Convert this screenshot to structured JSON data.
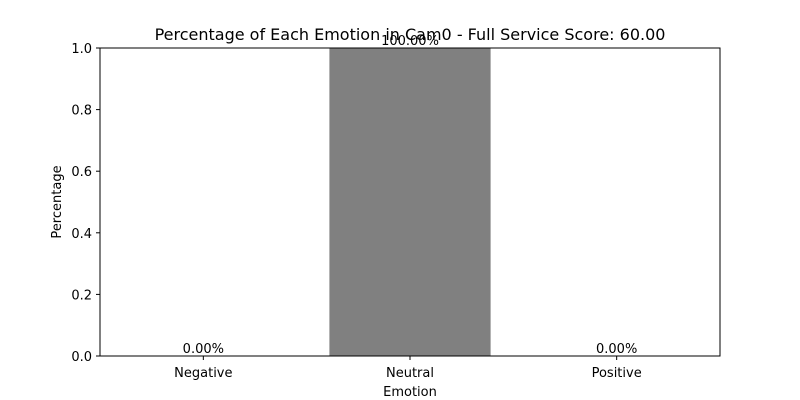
{
  "chart_data": {
    "type": "bar",
    "title": "Percentage of Each Emotion in Cam0 - Full Service Score: 60.00",
    "xlabel": "Emotion",
    "ylabel": "Percentage",
    "categories": [
      "Negative",
      "Neutral",
      "Positive"
    ],
    "values": [
      0.0,
      1.0,
      0.0
    ],
    "data_labels": [
      "0.00%",
      "100.00%",
      "0.00%"
    ],
    "ylim": [
      0,
      1.0
    ],
    "yticks": [
      0.0,
      0.2,
      0.4,
      0.6,
      0.8,
      1.0
    ],
    "ytick_labels": [
      "0.0",
      "0.2",
      "0.4",
      "0.6",
      "0.8",
      "1.0"
    ],
    "grid": false,
    "bar_color": "#808080"
  }
}
